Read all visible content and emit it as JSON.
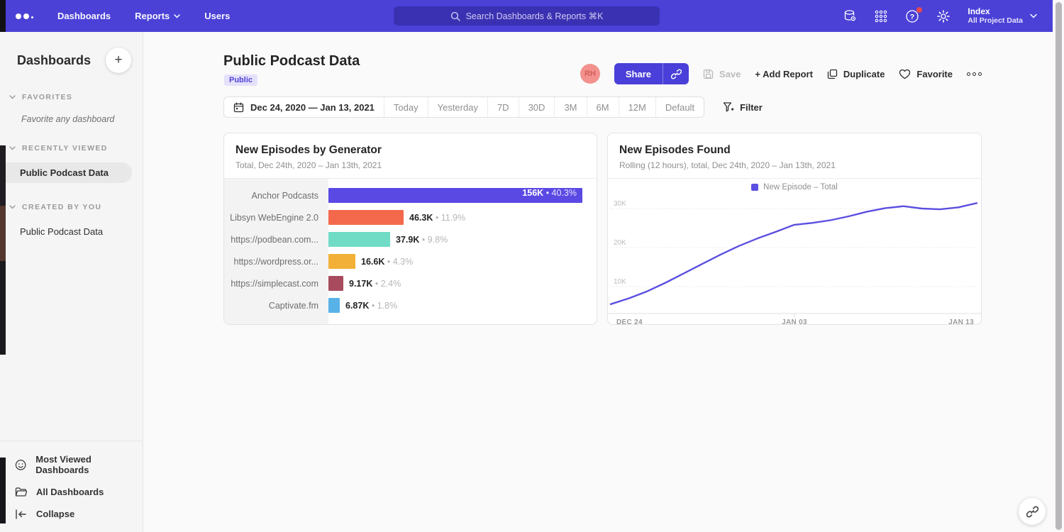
{
  "colors": {
    "nav_bg": "#4b41d7",
    "accent": "#4a3fd8",
    "line": "#5c50e2",
    "badge_bg": "#e5e1fa",
    "badge_text": "#5044d8"
  },
  "nav": {
    "items": [
      {
        "label": "Dashboards"
      },
      {
        "label": "Reports"
      },
      {
        "label": "Users"
      }
    ],
    "search_placeholder": "Search Dashboards & Reports ⌘K",
    "project_name": "Index",
    "project_subtitle": "All Project Data"
  },
  "sidebar": {
    "title": "Dashboards",
    "add_label": "+",
    "sections": [
      {
        "label": "FAVORITES",
        "empty_text": "Favorite any dashboard"
      },
      {
        "label": "RECENTLY VIEWED",
        "item": "Public Podcast Data"
      },
      {
        "label": "CREATED BY YOU",
        "item": "Public Podcast Data"
      }
    ],
    "footer": {
      "most_viewed": "Most Viewed Dashboards",
      "all_dashboards": "All Dashboards",
      "collapse": "Collapse"
    }
  },
  "header": {
    "title": "Public Podcast Data",
    "badge": "Public"
  },
  "toolbar": {
    "avatar": "RH",
    "share": "Share",
    "save": "Save",
    "add_report": "+ Add Report",
    "duplicate": "Duplicate",
    "favorite": "Favorite"
  },
  "date_bar": {
    "range": "Dec 24, 2020 — Jan 13, 2021",
    "presets": [
      "Today",
      "Yesterday",
      "7D",
      "30D",
      "3M",
      "6M",
      "12M",
      "Default"
    ],
    "filter": "Filter"
  },
  "chart_data": [
    {
      "type": "bar",
      "orientation": "horizontal",
      "title": "New Episodes by Generator",
      "subtitle": "Total, Dec 24th, 2020 – Jan 13th, 2021",
      "categories": [
        "Anchor Podcasts",
        "Libsyn WebEngine 2.0",
        "https://podbean.com...",
        "https://wordpress.or...",
        "https://simplecast.com",
        "Captivate.fm"
      ],
      "values": [
        156000,
        46300,
        37900,
        16600,
        9170,
        6870
      ],
      "value_labels": [
        "156K",
        "46.3K",
        "37.9K",
        "16.6K",
        "9.17K",
        "6.87K"
      ],
      "pct_labels": [
        "40.3%",
        "11.9%",
        "9.8%",
        "4.3%",
        "2.4%",
        "1.8%"
      ],
      "colors": [
        "#5b49e4",
        "#f4694b",
        "#70dcc6",
        "#f2b038",
        "#a94b5e",
        "#58b2e8"
      ],
      "separator": "•",
      "xlim": [
        0,
        170000
      ]
    },
    {
      "type": "line",
      "title": "New Episodes Found",
      "subtitle": "Rolling (12 hours), total, Dec 24th, 2020 – Jan 13th, 2021",
      "legend": [
        {
          "label": "New Episode – Total",
          "color": "#5b50e0"
        }
      ],
      "x_ticks": [
        "DEC 24",
        "JAN 03",
        "JAN 13"
      ],
      "y_ticks": [
        "10K",
        "20K",
        "30K"
      ],
      "ylim": [
        0,
        33000
      ],
      "grid": "dotted-horizontal",
      "values_k": [
        5.5,
        7.0,
        8.8,
        11.0,
        13.4,
        15.8,
        18.2,
        20.4,
        22.3,
        24.0,
        25.8,
        26.3,
        27.0,
        28.0,
        29.2,
        30.1,
        30.6,
        30.0,
        29.8,
        30.3,
        31.4
      ]
    }
  ]
}
